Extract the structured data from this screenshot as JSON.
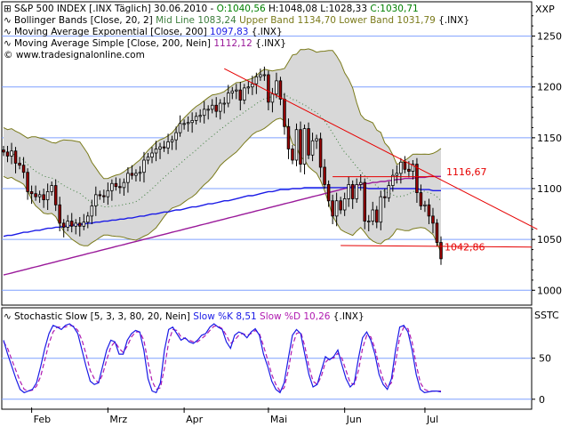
{
  "chart_data": {
    "type": "candlestick",
    "price_panel": {
      "title_label": "S&P 500 INDEX",
      "symbol": "[.INX",
      "period": "Täglich]",
      "date": "30.06.2010",
      "ohlc_text": {
        "open": "O:1040,56",
        "high": "H:1048,08",
        "low": "L:1028,33",
        "close": "C:1030,71"
      },
      "axis_label": "XXP",
      "ylim": [
        988,
        1282
      ],
      "y_ticks": [
        1000,
        1050,
        1100,
        1150,
        1200,
        1250
      ],
      "indicators": [
        {
          "name": "Bollinger Bands [Close, 20, 2]",
          "mid": "Mid Line 1083,24",
          "upper": "Upper Band 1134,70",
          "lower": "Lower Band 1031,79",
          "suffix": "{.INX}"
        },
        {
          "name": "Moving Average Exponential [Close, 200]",
          "value": "1097,83",
          "suffix": "{.INX}"
        },
        {
          "name": "Moving Average Simple [Close, 200, Nein]",
          "value": "1112,12",
          "suffix": "{.INX}"
        }
      ],
      "copyright": "© www.tradesignalonline.com",
      "annotations": [
        {
          "text": "1116,67",
          "value": 1116.67
        },
        {
          "text": "1042,86",
          "value": 1042.86
        }
      ],
      "closes": [
        1136,
        1132,
        1137,
        1125,
        1123,
        1116,
        1097,
        1095,
        1092,
        1094,
        1089,
        1097,
        1103,
        1084,
        1066,
        1062,
        1068,
        1063,
        1066,
        1063,
        1067,
        1073,
        1083,
        1094,
        1093,
        1092,
        1098,
        1105,
        1102,
        1101,
        1106,
        1115,
        1113,
        1115,
        1116,
        1128,
        1131,
        1135,
        1139,
        1141,
        1140,
        1146,
        1148,
        1155,
        1164,
        1164,
        1165,
        1167,
        1171,
        1172,
        1178,
        1178,
        1182,
        1176,
        1184,
        1184,
        1194,
        1196,
        1197,
        1187,
        1199,
        1200,
        1203,
        1210,
        1212,
        1212,
        1185,
        1193,
        1206,
        1188,
        1161,
        1139,
        1128,
        1158,
        1124,
        1159,
        1133,
        1147,
        1149,
        1121,
        1104,
        1088,
        1073,
        1088,
        1079,
        1090,
        1104,
        1090,
        1104,
        1106,
        1068,
        1068,
        1079,
        1067,
        1092,
        1091,
        1103,
        1113,
        1115,
        1126,
        1119,
        1117,
        1124,
        1096,
        1083,
        1084,
        1073,
        1066,
        1047,
        1031
      ],
      "ema200": [
        1053,
        1054,
        1054,
        1055,
        1056,
        1057,
        1057,
        1058,
        1059,
        1059,
        1060,
        1061,
        1061,
        1062,
        1062,
        1063,
        1063,
        1064,
        1064,
        1065,
        1065,
        1066,
        1066,
        1067,
        1067,
        1068,
        1068,
        1069,
        1069,
        1070,
        1070,
        1071,
        1071,
        1072,
        1073,
        1073,
        1074,
        1075,
        1075,
        1076,
        1077,
        1077,
        1078,
        1079,
        1079,
        1080,
        1081,
        1082,
        1082,
        1083,
        1084,
        1085,
        1085,
        1086,
        1087,
        1088,
        1088,
        1089,
        1090,
        1091,
        1092,
        1093,
        1093,
        1094,
        1095,
        1096,
        1097,
        1097,
        1098,
        1099,
        1099,
        1099,
        1100,
        1100,
        1100,
        1101,
        1101,
        1101,
        1101,
        1101,
        1101,
        1101,
        1101,
        1101,
        1101,
        1101,
        1101,
        1101,
        1101,
        1101,
        1101,
        1100,
        1100,
        1100,
        1100,
        1100,
        1100,
        1100,
        1100,
        1100,
        1100,
        1100,
        1100,
        1100,
        1099,
        1099,
        1099,
        1098,
        1098,
        1098
      ],
      "sma200": [
        1015,
        1016,
        1017,
        1018,
        1019,
        1020,
        1021,
        1022,
        1023,
        1024,
        1025,
        1026,
        1027,
        1028,
        1029,
        1030,
        1031,
        1032,
        1033,
        1034,
        1035,
        1036,
        1037,
        1038,
        1039,
        1040,
        1041,
        1042,
        1043,
        1044,
        1045,
        1046,
        1047,
        1048,
        1049,
        1050,
        1051,
        1052,
        1053,
        1054,
        1055,
        1056,
        1057,
        1058,
        1059,
        1060,
        1061,
        1062,
        1063,
        1064,
        1065,
        1066,
        1067,
        1068,
        1069,
        1070,
        1071,
        1072,
        1073,
        1074,
        1075,
        1076,
        1077,
        1078,
        1079,
        1080,
        1081,
        1082,
        1083,
        1084,
        1085,
        1086,
        1087,
        1088,
        1089,
        1090,
        1091,
        1092,
        1093,
        1094,
        1095,
        1096,
        1097,
        1098,
        1099,
        1100,
        1101,
        1102,
        1103,
        1104,
        1105,
        1105,
        1106,
        1106,
        1107,
        1107,
        1108,
        1108,
        1109,
        1109,
        1110,
        1110,
        1110,
        1111,
        1111,
        1111,
        1112,
        1112,
        1112,
        1112
      ],
      "trendline_down": {
        "from_value": 1218,
        "to_value": 1060
      },
      "support_line": {
        "value": 1044
      }
    },
    "stochastic_panel": {
      "label": "Stochastic Slow [5, 3, 3, 80, 20, Nein]",
      "k_label": "Slow %K 8,51",
      "d_label": "Slow %D 10,26",
      "suffix": "{.INX}",
      "axis_label": "SSTC",
      "ylim": [
        -10,
        105
      ],
      "y_ticks": [
        0,
        50
      ],
      "slow_k": [
        72,
        55,
        40,
        25,
        12,
        8,
        10,
        12,
        20,
        40,
        62,
        80,
        90,
        88,
        85,
        90,
        92,
        88,
        80,
        60,
        40,
        22,
        18,
        20,
        40,
        60,
        72,
        70,
        55,
        55,
        72,
        80,
        84,
        82,
        60,
        25,
        10,
        8,
        20,
        60,
        85,
        88,
        80,
        72,
        75,
        70,
        68,
        72,
        78,
        80,
        88,
        92,
        88,
        85,
        70,
        62,
        78,
        82,
        80,
        75,
        82,
        86,
        78,
        55,
        40,
        22,
        12,
        8,
        20,
        50,
        78,
        85,
        80,
        55,
        30,
        15,
        18,
        35,
        52,
        48,
        52,
        60,
        42,
        25,
        15,
        20,
        50,
        75,
        82,
        72,
        55,
        30,
        18,
        12,
        25,
        60,
        88,
        90,
        82,
        60,
        30,
        12,
        8,
        9,
        10,
        10,
        9
      ],
      "slow_d": [
        70,
        62,
        48,
        35,
        22,
        12,
        10,
        11,
        16,
        28,
        48,
        68,
        82,
        88,
        88,
        88,
        90,
        89,
        84,
        72,
        55,
        35,
        25,
        20,
        30,
        48,
        64,
        70,
        62,
        57,
        65,
        76,
        82,
        82,
        72,
        45,
        22,
        12,
        14,
        38,
        70,
        85,
        84,
        76,
        74,
        72,
        70,
        70,
        74,
        78,
        84,
        89,
        89,
        86,
        78,
        68,
        72,
        78,
        80,
        78,
        80,
        84,
        80,
        65,
        48,
        30,
        18,
        10,
        14,
        35,
        65,
        80,
        82,
        65,
        40,
        22,
        18,
        28,
        45,
        50,
        50,
        56,
        50,
        35,
        20,
        18,
        35,
        62,
        78,
        76,
        62,
        40,
        24,
        15,
        20,
        45,
        76,
        88,
        86,
        70,
        42,
        20,
        12,
        10,
        10,
        10,
        10
      ]
    },
    "x_axis": {
      "months": [
        "Feb",
        "Mrz",
        "Apr",
        "Mai",
        "Jun",
        "Jul"
      ]
    },
    "colors": {
      "bands_fill": "#d8d8d8",
      "bands_line": "#7a7a1a",
      "mid_line": "#3c7d3c",
      "ema": "#1a1ae6",
      "sma": "#9a1a9a",
      "trend": "#e60000",
      "grid": "#7fa0ff",
      "candle_up": "#ffffff",
      "candle_down": "#990000",
      "k_line": "#1a1ae6",
      "d_line": "#b01ab0"
    }
  }
}
